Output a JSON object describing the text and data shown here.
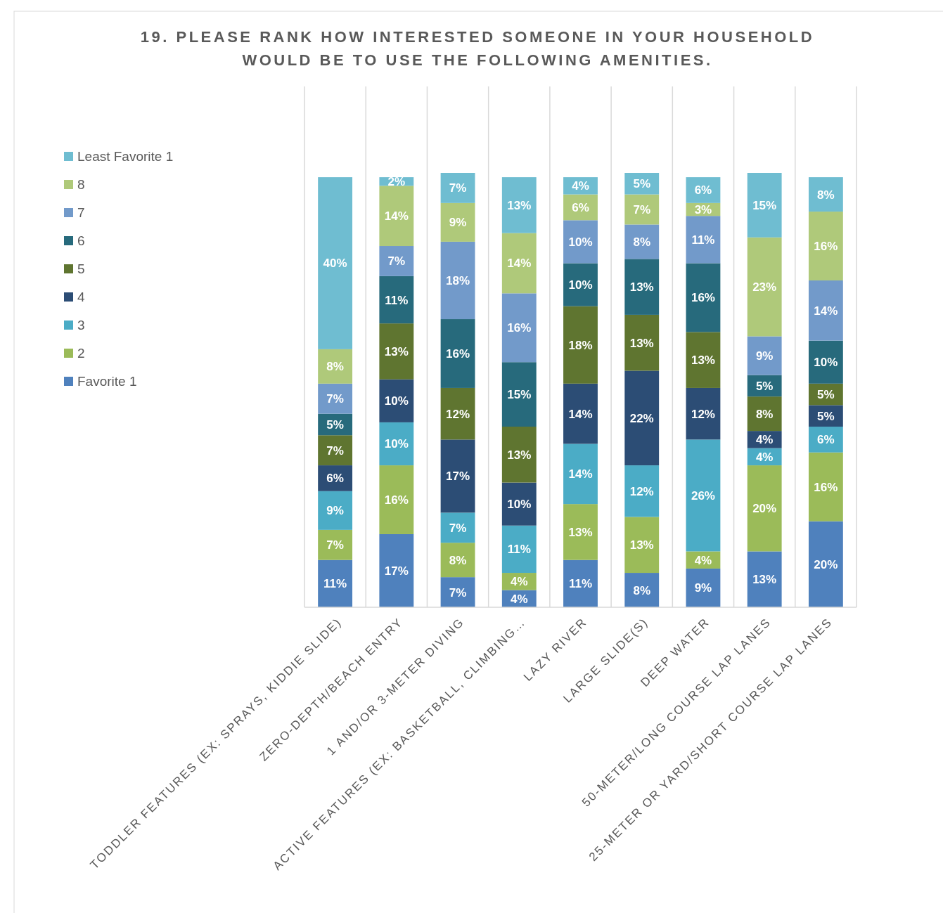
{
  "chart_data": {
    "type": "bar",
    "title": "19. PLEASE RANK HOW INTERESTED SOMEONE IN YOUR HOUSEHOLD WOULD BE TO USE THE FOLLOWING AMENITIES.",
    "stacked": true,
    "grid": "x",
    "legend": "left",
    "categories": [
      "TODDLER FEATURES (EX: SPRAYS, KIDDIE SLIDE)",
      "ZERO-DEPTH/BEACH ENTRY",
      "1 AND/OR 3-METER DIVING",
      "ACTIVE FEATURES (EX: BASKETBALL, CLIMBING…",
      "LAZY RIVER",
      "LARGE SLIDE(S)",
      "DEEP WATER",
      "50-METER/LONG COURSE LAP LANES",
      "25-METER OR YARD/SHORT COURSE LAP LANES"
    ],
    "series": [
      {
        "name": "Favorite 1",
        "color": "#4f81bd",
        "values": [
          11,
          17,
          7,
          4,
          11,
          8,
          9,
          13,
          20
        ],
        "value_labels": [
          "11%",
          "17%",
          "7%",
          "4%",
          "11%",
          "8%",
          "9%",
          "13%",
          "20%"
        ]
      },
      {
        "name": "2",
        "color": "#9bbb59",
        "values": [
          7,
          16,
          8,
          4,
          13,
          13,
          4,
          20,
          16
        ],
        "value_labels": [
          "7%",
          "16%",
          "8%",
          "4%",
          "13%",
          "13%",
          "4%",
          "20%",
          "16%"
        ]
      },
      {
        "name": "3",
        "color": "#4bacc6",
        "values": [
          9,
          10,
          7,
          11,
          14,
          12,
          26,
          4,
          6
        ],
        "value_labels": [
          "9%",
          "10%",
          "7%",
          "11%",
          "14%",
          "12%",
          "26%",
          "4%",
          "6%"
        ]
      },
      {
        "name": "4",
        "color": "#2c4d75",
        "values": [
          6,
          10,
          17,
          10,
          14,
          22,
          12,
          4,
          5
        ],
        "value_labels": [
          "6%",
          "10%",
          "17%",
          "10%",
          "14%",
          "22%",
          "12%",
          "4%",
          "5%"
        ]
      },
      {
        "name": "5",
        "color": "#5f7530",
        "values": [
          7,
          13,
          12,
          13,
          18,
          13,
          13,
          8,
          5
        ],
        "value_labels": [
          "7%",
          "13%",
          "12%",
          "13%",
          "18%",
          "13%",
          "13%",
          "8%",
          "5%"
        ]
      },
      {
        "name": "6",
        "color": "#276a7c",
        "values": [
          5,
          11,
          16,
          15,
          10,
          13,
          16,
          5,
          10
        ],
        "value_labels": [
          "5%",
          "11%",
          "16%",
          "15%",
          "10%",
          "13%",
          "16%",
          "5%",
          "10%"
        ]
      },
      {
        "name": "7",
        "color": "#729aca",
        "values": [
          7,
          7,
          18,
          16,
          10,
          8,
          11,
          9,
          14
        ],
        "value_labels": [
          "7%",
          "7%",
          "18%",
          "16%",
          "10%",
          "8%",
          "11%",
          "9%",
          "14%"
        ]
      },
      {
        "name": "8",
        "color": "#afc97a",
        "values": [
          8,
          14,
          9,
          14,
          6,
          7,
          3,
          23,
          16
        ],
        "value_labels": [
          "8%",
          "14%",
          "9%",
          "14%",
          "6%",
          "7%",
          "3%",
          "23%",
          "16%"
        ]
      },
      {
        "name": "Least Favorite 1",
        "color": "#6fbdd1",
        "values": [
          40,
          2,
          7,
          13,
          4,
          5,
          6,
          15,
          8
        ],
        "value_labels": [
          "40%",
          "2%",
          "7%",
          "13%",
          "4%",
          "5%",
          "6%",
          "15%",
          "8%"
        ]
      }
    ]
  }
}
